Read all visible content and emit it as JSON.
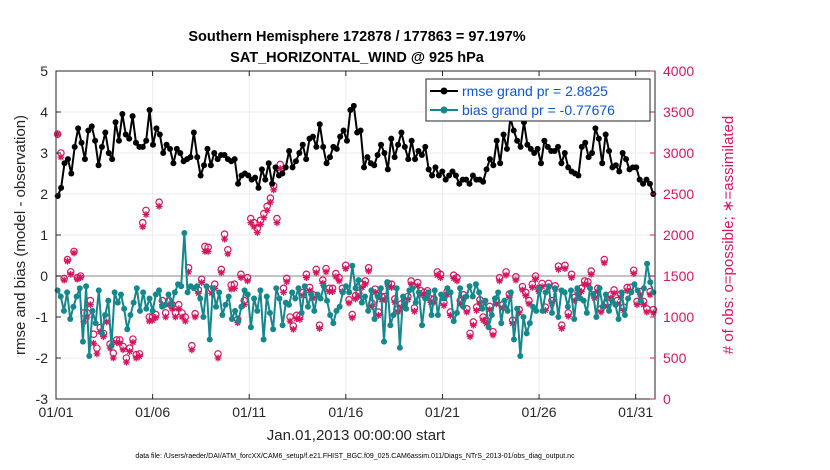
{
  "chart_data": {
    "type": "line",
    "title": "Southern Hemisphere 172878 / 177863 = 97.197%",
    "subtitle": "SAT_HORIZONTAL_WIND @ 925 hPa",
    "xlabel": "Jan.01,2013 00:00:00 start",
    "ylabel_left": "rmse and bias (model - observation)",
    "ylabel_right": "# of obs: o=possible; ∗=assimilated",
    "footer": "data file: /Users/raeder/DAI/ATM_forcXX/CAM6_setup/f.e21.FHIST_BGC.f09_025.CAM6assim.011/Diags_NTrS_2013-01/obs_diag_output.nc",
    "xlim": [
      0,
      124
    ],
    "ylim_left": [
      -3,
      5
    ],
    "ylim_right": [
      0,
      4000
    ],
    "x_tick_labels": [
      "01/01",
      "01/06",
      "01/11",
      "01/16",
      "01/21",
      "01/26",
      "01/31"
    ],
    "y_left_ticks": [
      "5",
      "4",
      "3",
      "2",
      "1",
      "0",
      "-1",
      "-2",
      "-3"
    ],
    "y_right_ticks": [
      "4000",
      "3500",
      "3000",
      "2500",
      "2000",
      "1500",
      "1000",
      "500",
      "0"
    ],
    "zero_line": 0,
    "colors": {
      "rmse": "#000000",
      "bias": "#14888c",
      "obs": "#d6175f",
      "legend_text": "#0b56d6",
      "zero_line": "#b0b0b0",
      "grid": "#ebebeb"
    },
    "series": [
      {
        "name": "rmse",
        "legend": "rmse grand pr = 2.8825",
        "axis": "left",
        "values": [
          1.95,
          2.15,
          2.75,
          2.85,
          2.5,
          3.15,
          3.6,
          3.25,
          2.85,
          3.55,
          3.65,
          3.3,
          2.7,
          3.15,
          3.5,
          3.0,
          2.85,
          3.75,
          3.3,
          3.95,
          3.45,
          3.35,
          3.9,
          3.25,
          3.15,
          3.15,
          3.3,
          4.05,
          3.2,
          3.6,
          3.45,
          3.0,
          3.2,
          3.1,
          2.75,
          3.1,
          3.0,
          2.8,
          2.85,
          2.9,
          3.5,
          2.9,
          2.45,
          2.7,
          3.1,
          2.7,
          3.0,
          2.85,
          2.95,
          2.95,
          2.85,
          2.8,
          2.85,
          2.25,
          2.45,
          2.5,
          2.45,
          2.35,
          2.4,
          2.15,
          2.6,
          2.35,
          2.75,
          2.25,
          2.65,
          2.45,
          2.5,
          2.65,
          3.05,
          2.65,
          2.8,
          3.0,
          3.2,
          2.85,
          3.35,
          3.4,
          3.15,
          3.7,
          3.15,
          2.75,
          2.9,
          3.15,
          3.1,
          3.4,
          3.55,
          3.3,
          4.05,
          4.15,
          3.5,
          3.55,
          2.65,
          2.9,
          2.75,
          2.7,
          2.95,
          3.2,
          3.0,
          2.6,
          3.35,
          2.9,
          3.2,
          3.5,
          3.15,
          2.85,
          3.3,
          2.85,
          3.05,
          2.95,
          3.15,
          2.6,
          2.45,
          2.65,
          2.45,
          2.55,
          2.35,
          2.45,
          2.55,
          2.45,
          2.25,
          2.35,
          2.35,
          2.25,
          2.45,
          2.35,
          2.35,
          2.3,
          2.6,
          2.85,
          2.7,
          3.3,
          2.75,
          3.45,
          3.1,
          3.85,
          3.55,
          3.3,
          3.15,
          3.75,
          3.2,
          3.1,
          3.0,
          3.1,
          2.75,
          3.3,
          3.15,
          3.05,
          3.05,
          3.15,
          2.75,
          3.0,
          2.65,
          2.55,
          2.5,
          2.45,
          3.15,
          3.25,
          2.9,
          3.0,
          3.6,
          3.35,
          2.75,
          3.45,
          3.05,
          2.65,
          2.7,
          2.55,
          3.0,
          2.85,
          2.6,
          2.65,
          2.65,
          2.35,
          2.25,
          2.35,
          2.25,
          2.0
        ]
      },
      {
        "name": "bias",
        "legend": "bias grand pr = -0.77676",
        "axis": "left",
        "values": [
          -0.35,
          -0.5,
          -0.85,
          -0.4,
          -1.05,
          -0.75,
          -0.5,
          -0.3,
          -1.6,
          -0.25,
          -1.95,
          -0.85,
          -1.15,
          -0.35,
          -1.4,
          -0.95,
          -0.6,
          -1.7,
          -0.4,
          -0.65,
          -0.45,
          -0.8,
          -1.3,
          -0.95,
          -0.65,
          -0.3,
          -0.85,
          -0.4,
          -0.8,
          -0.55,
          -0.85,
          -0.45,
          -0.35,
          -0.75,
          -0.7,
          -0.45,
          -0.7,
          -0.4,
          -0.2,
          -0.25,
          1.05,
          -0.4,
          -0.25,
          -0.3,
          -0.25,
          -0.55,
          -1.0,
          -0.25,
          -1.55,
          -0.3,
          -0.75,
          -0.4,
          -0.95,
          -0.7,
          -0.5,
          -1.05,
          -0.85,
          -1.1,
          -0.75,
          -0.35,
          -0.45,
          -1.25,
          -0.55,
          -0.85,
          -0.35,
          -1.55,
          -0.5,
          -0.9,
          -1.3,
          -0.3,
          -0.55,
          -1.2,
          -0.65,
          -0.7,
          -0.4,
          -0.55,
          -0.3,
          -0.9,
          -0.25,
          -0.75,
          -0.45,
          -0.85,
          -0.45,
          -0.55,
          -0.25,
          -0.6,
          -0.95,
          -1.15,
          -0.85,
          -0.75,
          -0.4,
          -0.25,
          -0.4,
          0.25,
          -0.3,
          -0.1,
          -0.65,
          -0.5,
          -0.85,
          -0.35,
          -1.05,
          -0.5,
          -0.3,
          -1.6,
          -0.15,
          -1.2,
          -0.95,
          -0.3,
          -1.75,
          -0.5,
          -0.8,
          -0.35,
          -0.3,
          -0.65,
          -0.4,
          -1.2,
          -0.55,
          -0.4,
          -0.95,
          -0.35,
          -0.95,
          -0.45,
          -0.55,
          -0.3,
          -0.4,
          -1.1,
          -0.9,
          -0.3,
          -0.75,
          -0.5,
          -0.25,
          -0.5,
          -0.2,
          -0.4,
          -0.8,
          -0.6,
          -1.25,
          -0.95,
          -0.55,
          -0.4,
          -1.15,
          -0.6,
          -0.85,
          -0.4,
          -1.55,
          -0.8,
          -1.95,
          -1.0,
          -1.4,
          -1.15,
          -0.75,
          -0.85,
          -0.3,
          -0.85,
          -0.4,
          -0.25,
          -0.9,
          -0.3,
          -1.0,
          -0.35,
          -0.4,
          -0.75,
          -0.35,
          -1.05,
          -0.3,
          -0.55,
          -0.6,
          -0.9,
          -0.3,
          -0.45,
          -1.0,
          -0.3,
          -0.75,
          -0.45,
          -0.85,
          -0.6,
          -0.7,
          -1.05,
          -0.4,
          -0.95,
          -0.55,
          -0.4,
          -0.2,
          -0.35,
          -0.6,
          -0.3,
          0.3,
          -0.15,
          -0.4
        ]
      },
      {
        "name": "obs_possible",
        "axis": "right",
        "marker": "o",
        "values": [
          3230,
          3000,
          1470,
          1700,
          1550,
          1800,
          1480,
          1500,
          1050,
          1050,
          1200,
          790,
          620,
          870,
          800,
          990,
          670,
          560,
          720,
          720,
          640,
          500,
          620,
          730,
          540,
          550,
          2150,
          2300,
          1000,
          1000,
          1030,
          2400,
          1200,
          1050,
          1200,
          1150,
          1050,
          1150,
          1050,
          1000,
          1600,
          650,
          1040,
          1330,
          1460,
          1860,
          1850,
          1340,
          1400,
          550,
          1580,
          2010,
          1820,
          1390,
          1400,
          970,
          1520,
          1200,
          1480,
          2200,
          2150,
          2080,
          2180,
          2260,
          2350,
          2450,
          2600,
          2200,
          2860,
          1350,
          1470,
          1000,
          890,
          1020,
          1010,
          1300,
          1520,
          1360,
          1270,
          1580,
          900,
          1450,
          1590,
          1350,
          1350,
          1530,
          1480,
          1350,
          1630,
          1210,
          1030,
          1260,
          1290,
          1400,
          1440,
          1600,
          1170,
          1340,
          1060,
          1250,
          1250,
          1410,
          1400,
          1220,
          1100,
          1160,
          1200,
          1250,
          1440,
          1110,
          1420,
          1320,
          1300,
          1320,
          1220,
          1220,
          1550,
          1520,
          1180,
          1310,
          1060,
          1510,
          1480,
          1200,
          1270,
          1100,
          800,
          940,
          1120,
          1210,
          1000,
          960,
          1130,
          820,
          1200,
          1480,
          1150,
          1550,
          1280,
          960,
          1490,
          1090,
          1370,
          1300,
          1200,
          1400,
          1500,
          1350,
          1410,
          1120,
          1410,
          1200,
          1380,
          1620,
          900,
          1630,
          1050,
          1520,
          1240,
          1310,
          1350,
          1440,
          1430,
          1560,
          1270,
          1350,
          1100,
          1700,
          1170,
          1270,
          1330,
          1200,
          1280,
          1120,
          1360,
          1360,
          1570,
          1190,
          1310,
          1190,
          1100,
          1310,
          1090
        ]
      },
      {
        "name": "obs_assimilated",
        "axis": "right",
        "marker": "*",
        "values": [
          3230,
          2950,
          1450,
          1680,
          1520,
          1780,
          1460,
          1480,
          940,
          1000,
          1150,
          680,
          550,
          820,
          760,
          940,
          620,
          500,
          690,
          680,
          600,
          450,
          580,
          690,
          500,
          520,
          2100,
          2250,
          950,
          960,
          990,
          2350,
          1150,
          1000,
          1150,
          1100,
          1000,
          1100,
          1000,
          950,
          1550,
          600,
          1000,
          1290,
          1420,
          1800,
          1800,
          1290,
          1350,
          500,
          1540,
          1950,
          1770,
          1340,
          1350,
          930,
          1480,
          1150,
          1440,
          2150,
          2100,
          2030,
          2130,
          2210,
          2300,
          2400,
          2550,
          2150,
          2810,
          1300,
          1430,
          950,
          850,
          980,
          970,
          1260,
          1480,
          1320,
          1230,
          1540,
          860,
          1410,
          1550,
          1310,
          1310,
          1490,
          1440,
          1310,
          1590,
          1170,
          990,
          1220,
          1250,
          1360,
          1400,
          1560,
          1130,
          1300,
          1020,
          1210,
          1210,
          1370,
          1360,
          1180,
          1060,
          1120,
          1160,
          1210,
          1400,
          1070,
          1380,
          1280,
          1260,
          1280,
          1180,
          1180,
          1510,
          1480,
          1140,
          1270,
          1020,
          1470,
          1440,
          1160,
          1230,
          1060,
          760,
          900,
          1080,
          1170,
          960,
          920,
          1090,
          780,
          1160,
          1440,
          1110,
          1510,
          1240,
          920,
          1450,
          1050,
          1330,
          1260,
          1160,
          1360,
          1460,
          1310,
          1370,
          1080,
          1370,
          1160,
          1340,
          1580,
          860,
          1590,
          1010,
          1480,
          1200,
          1270,
          1310,
          1400,
          1390,
          1520,
          1230,
          1310,
          1060,
          1660,
          1130,
          1230,
          1290,
          1160,
          1240,
          1080,
          1320,
          1320,
          1530,
          1150,
          1270,
          1150,
          1060,
          1270,
          1050
        ]
      }
    ]
  }
}
